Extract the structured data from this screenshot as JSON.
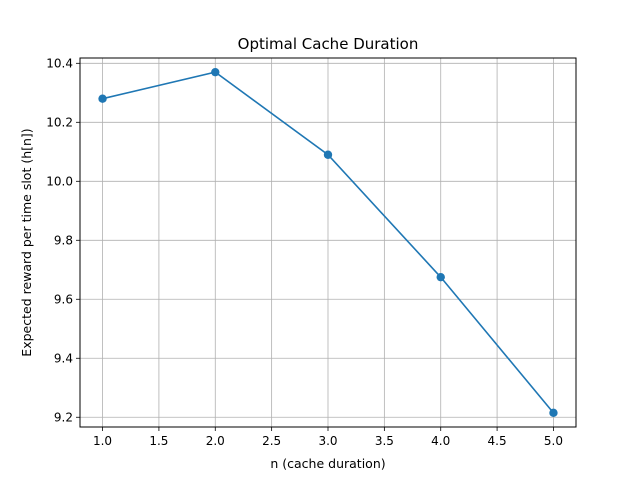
{
  "chart_data": {
    "type": "line",
    "title": "Optimal Cache Duration",
    "xlabel": "n (cache duration)",
    "ylabel": "Expected reward per time slot (h[n])",
    "x": [
      1,
      2,
      3,
      4,
      5
    ],
    "series": [
      {
        "values": [
          10.28,
          10.37,
          10.09,
          9.675,
          9.215
        ]
      }
    ],
    "xlim": [
      0.8,
      5.2
    ],
    "ylim": [
      9.167,
      10.418
    ],
    "xticks": [
      1.0,
      1.5,
      2.0,
      2.5,
      3.0,
      3.5,
      4.0,
      4.5,
      5.0
    ],
    "xtick_labels": [
      "1.0",
      "1.5",
      "2.0",
      "2.5",
      "3.0",
      "3.5",
      "4.0",
      "4.5",
      "5.0"
    ],
    "yticks": [
      9.2,
      9.4,
      9.6,
      9.8,
      10.0,
      10.2,
      10.4
    ],
    "ytick_labels": [
      "9.2",
      "9.4",
      "9.6",
      "9.8",
      "10.0",
      "10.2",
      "10.4"
    ],
    "grid": true,
    "marker": "circle",
    "colors": {
      "line": "#1f77b4",
      "grid": "#b0b0b0",
      "axes": "#000000"
    }
  }
}
